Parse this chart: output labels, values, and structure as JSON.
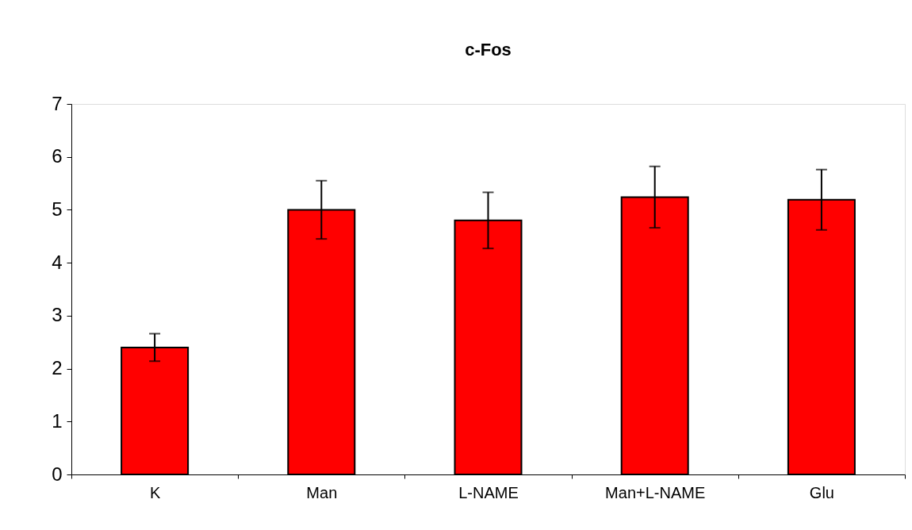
{
  "chart_data": {
    "type": "bar",
    "title": "c-Fos",
    "categories": [
      "K",
      "Man",
      "L-NAME",
      "Man+L-NAME",
      "Glu"
    ],
    "values": [
      2.4,
      5.0,
      4.8,
      5.24,
      5.19
    ],
    "errors": [
      0.26,
      0.55,
      0.53,
      0.58,
      0.57
    ],
    "color": "#ff0000",
    "ylim": [
      0,
      7
    ],
    "yticks": [
      0,
      1,
      2,
      3,
      4,
      5,
      6,
      7
    ],
    "grid": false
  }
}
